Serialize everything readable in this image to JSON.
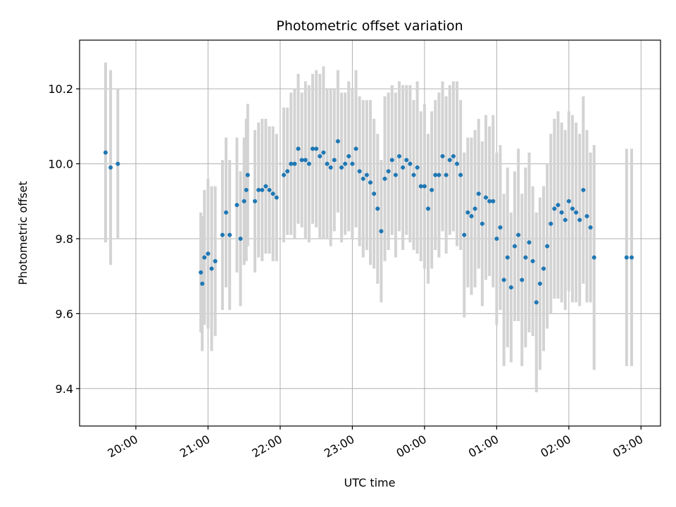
{
  "chart_data": {
    "type": "scatter",
    "title": "Photometric offset variation",
    "xlabel": "UTC time",
    "ylabel": "Photometric offset",
    "x_ticks": [
      "20:00",
      "21:00",
      "22:00",
      "23:00",
      "00:00",
      "01:00",
      "02:00",
      "03:00"
    ],
    "y_ticks": [
      9.4,
      9.6,
      9.8,
      10.0,
      10.2
    ],
    "ylim": [
      9.3,
      10.33
    ],
    "xlim_hours": [
      -4.78,
      3.27
    ],
    "grid": true,
    "colors": {
      "points": "#1f77b4",
      "errorbars": "#d3d3d3"
    },
    "series": [
      {
        "x_hours": [
          -4.42,
          -4.35,
          -4.25,
          -3.1,
          -3.08,
          -3.05,
          -3.0,
          -2.95,
          -2.9,
          -2.8,
          -2.75,
          -2.7,
          -2.6,
          -2.55,
          -2.5,
          -2.47,
          -2.45,
          -2.35,
          -2.3,
          -2.25,
          -2.2,
          -2.15,
          -2.1,
          -2.05,
          -1.95,
          -1.9,
          -1.85,
          -1.8,
          -1.75,
          -1.7,
          -1.65,
          -1.6,
          -1.55,
          -1.5,
          -1.45,
          -1.4,
          -1.35,
          -1.3,
          -1.25,
          -1.2,
          -1.15,
          -1.1,
          -1.05,
          -1.0,
          -0.95,
          -0.9,
          -0.85,
          -0.8,
          -0.75,
          -0.7,
          -0.65,
          -0.6,
          -0.55,
          -0.5,
          -0.45,
          -0.4,
          -0.35,
          -0.3,
          -0.25,
          -0.2,
          -0.15,
          -0.1,
          -0.05,
          0.0,
          0.05,
          0.1,
          0.15,
          0.2,
          0.25,
          0.3,
          0.35,
          0.4,
          0.45,
          0.5,
          0.55,
          0.6,
          0.65,
          0.7,
          0.75,
          0.8,
          0.85,
          0.9,
          0.95,
          1.0,
          1.05,
          1.1,
          1.15,
          1.2,
          1.25,
          1.3,
          1.35,
          1.4,
          1.45,
          1.5,
          1.55,
          1.6,
          1.65,
          1.7,
          1.75,
          1.8,
          1.85,
          1.9,
          1.95,
          2.0,
          2.05,
          2.1,
          2.15,
          2.2,
          2.25,
          2.3,
          2.35,
          2.8,
          2.87
        ],
        "y": [
          10.03,
          9.99,
          10.0,
          9.71,
          9.68,
          9.75,
          9.76,
          9.72,
          9.74,
          9.81,
          9.87,
          9.81,
          9.89,
          9.8,
          9.9,
          9.93,
          9.97,
          9.9,
          9.93,
          9.93,
          9.94,
          9.93,
          9.92,
          9.91,
          9.97,
          9.98,
          10.0,
          10.0,
          10.04,
          10.01,
          10.01,
          10.0,
          10.04,
          10.04,
          10.02,
          10.03,
          10.0,
          9.99,
          10.01,
          10.06,
          9.99,
          10.0,
          10.02,
          10.0,
          10.04,
          9.98,
          9.96,
          9.97,
          9.95,
          9.92,
          9.88,
          9.82,
          9.96,
          9.98,
          10.01,
          9.97,
          10.02,
          9.99,
          10.01,
          10.0,
          9.97,
          9.99,
          9.94,
          9.94,
          9.88,
          9.93,
          9.97,
          9.97,
          10.02,
          9.97,
          10.01,
          10.02,
          10.0,
          9.97,
          9.81,
          9.87,
          9.86,
          9.88,
          9.92,
          9.84,
          9.91,
          9.9,
          9.9,
          9.8,
          9.83,
          9.69,
          9.75,
          9.67,
          9.78,
          9.81,
          9.69,
          9.75,
          9.79,
          9.74,
          9.63,
          9.68,
          9.72,
          9.78,
          9.84,
          9.88,
          9.89,
          9.87,
          9.85,
          9.9,
          9.88,
          9.87,
          9.85,
          9.93,
          9.86,
          9.83,
          9.75,
          9.75,
          9.75
        ],
        "yerr": [
          0.24,
          0.26,
          0.2,
          0.16,
          0.18,
          0.18,
          0.2,
          0.22,
          0.2,
          0.2,
          0.2,
          0.2,
          0.18,
          0.18,
          0.17,
          0.19,
          0.19,
          0.19,
          0.18,
          0.19,
          0.18,
          0.17,
          0.18,
          0.17,
          0.18,
          0.17,
          0.19,
          0.2,
          0.2,
          0.18,
          0.21,
          0.21,
          0.2,
          0.21,
          0.22,
          0.23,
          0.2,
          0.21,
          0.19,
          0.19,
          0.2,
          0.19,
          0.2,
          0.2,
          0.21,
          0.2,
          0.21,
          0.2,
          0.22,
          0.2,
          0.2,
          0.19,
          0.22,
          0.21,
          0.2,
          0.22,
          0.2,
          0.22,
          0.2,
          0.21,
          0.2,
          0.23,
          0.2,
          0.22,
          0.2,
          0.21,
          0.2,
          0.22,
          0.2,
          0.21,
          0.2,
          0.2,
          0.22,
          0.2,
          0.22,
          0.2,
          0.21,
          0.21,
          0.2,
          0.22,
          0.22,
          0.2,
          0.23,
          0.23,
          0.22,
          0.23,
          0.24,
          0.2,
          0.2,
          0.23,
          0.23,
          0.24,
          0.24,
          0.2,
          0.24,
          0.23,
          0.22,
          0.22,
          0.24,
          0.24,
          0.25,
          0.24,
          0.24,
          0.24,
          0.25,
          0.24,
          0.23,
          0.25,
          0.23,
          0.2,
          0.3,
          0.29,
          0.29
        ]
      }
    ]
  }
}
